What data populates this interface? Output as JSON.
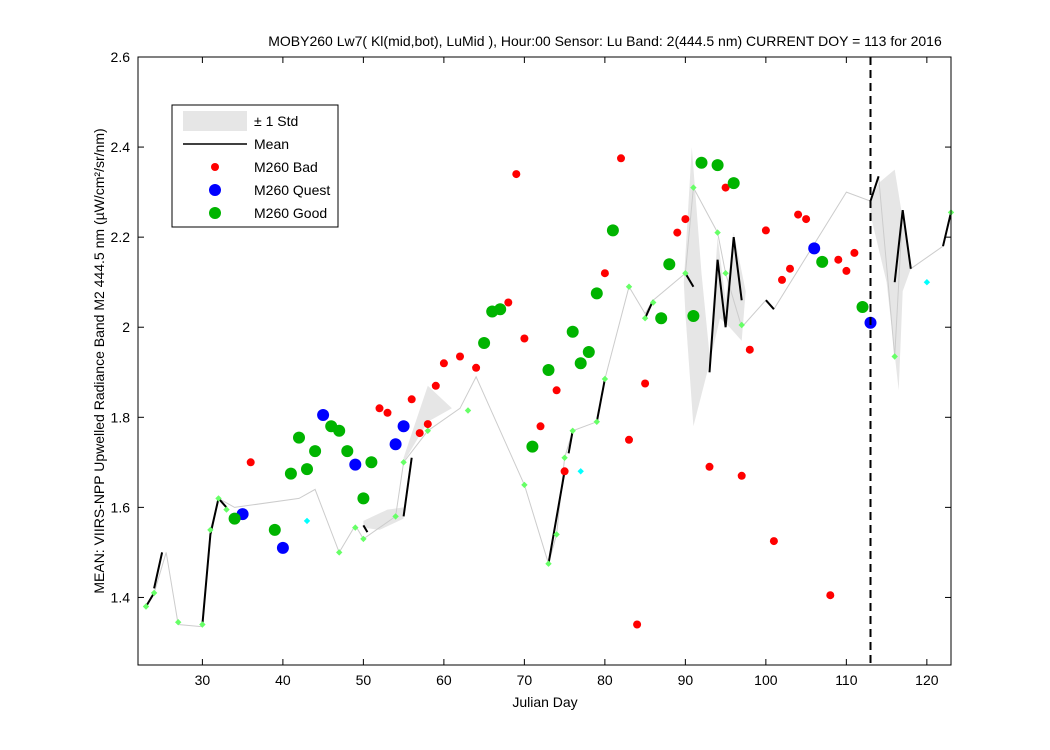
{
  "chart_data": {
    "type": "scatter",
    "title": "MOBY260   Lw7( Kl(mid,bot), LuMid ),   Hour:00 Sensor: Lu Band: 2(444.5 nm)   CURRENT DOY = 113 for 2016",
    "xlabel": "Julian Day",
    "ylabel": "MEAN: VIIRS-NPP Upwelled Radiance Band M2 444.5 nm (µW/cm²/sr/nm)",
    "xlim": [
      22,
      123
    ],
    "ylim": [
      1.25,
      2.6
    ],
    "x_ticks": [
      30,
      40,
      50,
      60,
      70,
      80,
      90,
      100,
      110,
      120
    ],
    "y_ticks": [
      1.4,
      1.6,
      1.8,
      2.0,
      2.2,
      2.4,
      2.6
    ],
    "y_tick_labels": [
      "1.4",
      "1.6",
      "1.8",
      "2",
      "2.2",
      "2.4",
      "2.6"
    ],
    "grid": false,
    "legend_position": "top-left",
    "current_day_line": 113,
    "legend": [
      {
        "label": "± 1 Std",
        "kind": "band"
      },
      {
        "label": "Mean",
        "kind": "line"
      },
      {
        "label": "M260 Bad",
        "kind": "dot",
        "color": "#ff0000"
      },
      {
        "label": "M260 Quest",
        "kind": "dot",
        "color": "#0000ff"
      },
      {
        "label": "M260 Good",
        "kind": "dot",
        "color": "#00b400"
      }
    ],
    "colors": {
      "bad": "#ff0000",
      "quest": "#0000ff",
      "good": "#00b400",
      "std_band": "#e6e6e6",
      "mean_line": "#000000",
      "light_green": "#66ff66",
      "cyan": "#00ffff",
      "thin_line": "#cccccc"
    },
    "std_bands": [
      [
        [
          50,
          1.57
        ],
        [
          53,
          1.595
        ],
        [
          55,
          1.6
        ],
        [
          55,
          1.575
        ],
        [
          52,
          1.55
        ],
        [
          50,
          1.555
        ]
      ],
      [
        [
          55,
          1.71
        ],
        [
          58,
          1.87
        ],
        [
          61,
          1.82
        ],
        [
          58,
          1.79
        ],
        [
          55,
          1.7
        ]
      ],
      [
        [
          89.8,
          2.1
        ],
        [
          90.8,
          2.4
        ],
        [
          92,
          2.12
        ],
        [
          93,
          1.94
        ],
        [
          94,
          2.2
        ],
        [
          95,
          2.06
        ],
        [
          96,
          2.21
        ],
        [
          97.5,
          2.08
        ],
        [
          97,
          1.97
        ],
        [
          95.5,
          2.0
        ],
        [
          94.3,
          2.02
        ],
        [
          93,
          1.92
        ],
        [
          91,
          1.78
        ],
        [
          90,
          2.03
        ]
      ],
      [
        [
          113,
          2.28
        ],
        [
          114,
          2.32
        ],
        [
          116,
          2.35
        ],
        [
          118,
          2.13
        ],
        [
          117,
          2.08
        ],
        [
          116.5,
          1.86
        ],
        [
          115,
          2.1
        ],
        [
          113,
          2.25
        ]
      ]
    ],
    "mean_segments": [
      [
        [
          23,
          1.38
        ],
        [
          24,
          1.41
        ]
      ],
      [
        [
          24,
          1.42
        ],
        [
          25,
          1.5
        ]
      ],
      [
        [
          30,
          1.34
        ],
        [
          31,
          1.54
        ],
        [
          32,
          1.62
        ],
        [
          33,
          1.6
        ]
      ],
      [
        [
          50,
          1.56
        ],
        [
          50.5,
          1.545
        ]
      ],
      [
        [
          55,
          1.58
        ],
        [
          56,
          1.71
        ]
      ],
      [
        [
          73,
          1.475
        ],
        [
          75,
          1.68
        ]
      ],
      [
        [
          75.5,
          1.72
        ],
        [
          76,
          1.77
        ]
      ],
      [
        [
          79,
          1.79
        ],
        [
          80,
          1.885
        ]
      ],
      [
        [
          85,
          2.02
        ],
        [
          86,
          2.06
        ]
      ],
      [
        [
          90,
          2.12
        ],
        [
          91,
          2.09
        ]
      ],
      [
        [
          93,
          1.9
        ],
        [
          94,
          2.15
        ],
        [
          95,
          2.0
        ],
        [
          96,
          2.2
        ],
        [
          97,
          2.06
        ]
      ],
      [
        [
          100,
          2.06
        ],
        [
          101,
          2.04
        ]
      ],
      [
        [
          113,
          2.28
        ],
        [
          114,
          2.335
        ]
      ],
      [
        [
          116,
          2.1
        ],
        [
          117,
          2.26
        ],
        [
          118,
          2.13
        ]
      ],
      [
        [
          122,
          2.18
        ],
        [
          123,
          2.255
        ]
      ]
    ],
    "thin_line": [
      [
        23,
        1.38
      ],
      [
        24,
        1.41
      ],
      [
        25.5,
        1.5
      ],
      [
        27,
        1.34
      ],
      [
        30,
        1.335
      ],
      [
        31,
        1.55
      ],
      [
        32,
        1.62
      ],
      [
        34,
        1.6
      ],
      [
        42,
        1.62
      ],
      [
        44,
        1.64
      ],
      [
        47,
        1.5
      ],
      [
        49,
        1.56
      ],
      [
        50,
        1.53
      ],
      [
        54,
        1.58
      ],
      [
        55,
        1.7
      ],
      [
        58,
        1.77
      ],
      [
        62,
        1.82
      ],
      [
        64,
        1.89
      ],
      [
        70,
        1.65
      ],
      [
        73,
        1.475
      ],
      [
        74,
        1.54
      ],
      [
        75,
        1.71
      ],
      [
        76,
        1.77
      ],
      [
        79,
        1.79
      ],
      [
        80,
        1.885
      ],
      [
        83,
        2.09
      ],
      [
        85,
        2.03
      ],
      [
        86,
        2.06
      ],
      [
        90,
        2.12
      ],
      [
        91,
        2.31
      ],
      [
        94,
        2.21
      ],
      [
        95,
        2.12
      ],
      [
        97,
        2.0
      ],
      [
        100,
        2.06
      ],
      [
        101,
        2.04
      ],
      [
        110,
        2.3
      ],
      [
        113,
        2.28
      ],
      [
        114,
        2.335
      ],
      [
        116,
        1.935
      ],
      [
        117,
        2.26
      ],
      [
        118,
        2.13
      ],
      [
        122,
        2.18
      ],
      [
        123,
        2.255
      ]
    ],
    "light_green_points": [
      [
        23,
        1.38
      ],
      [
        24,
        1.41
      ],
      [
        27,
        1.345
      ],
      [
        30,
        1.34
      ],
      [
        31,
        1.55
      ],
      [
        32,
        1.62
      ],
      [
        33,
        1.595
      ],
      [
        47,
        1.5
      ],
      [
        49,
        1.555
      ],
      [
        50,
        1.53
      ],
      [
        54,
        1.58
      ],
      [
        55,
        1.7
      ],
      [
        58,
        1.77
      ],
      [
        63,
        1.815
      ],
      [
        70,
        1.65
      ],
      [
        73,
        1.475
      ],
      [
        74,
        1.54
      ],
      [
        75,
        1.71
      ],
      [
        76,
        1.77
      ],
      [
        79,
        1.79
      ],
      [
        80,
        1.885
      ],
      [
        83,
        2.09
      ],
      [
        85,
        2.02
      ],
      [
        86,
        2.055
      ],
      [
        90,
        2.12
      ],
      [
        91,
        2.31
      ],
      [
        94,
        2.21
      ],
      [
        95,
        2.12
      ],
      [
        97,
        2.005
      ],
      [
        116,
        1.935
      ],
      [
        123,
        2.255
      ]
    ],
    "cyan_points": [
      [
        43,
        1.57
      ],
      [
        77,
        1.68
      ],
      [
        120,
        2.1
      ]
    ],
    "series": [
      {
        "name": "M260 Bad",
        "marker": "small",
        "points": [
          [
            36,
            1.7
          ],
          [
            52,
            1.82
          ],
          [
            53,
            1.81
          ],
          [
            56,
            1.84
          ],
          [
            57,
            1.765
          ],
          [
            58,
            1.785
          ],
          [
            59,
            1.87
          ],
          [
            60,
            1.92
          ],
          [
            62,
            1.935
          ],
          [
            64,
            1.91
          ],
          [
            68,
            2.055
          ],
          [
            69,
            2.34
          ],
          [
            70,
            1.975
          ],
          [
            72,
            1.78
          ],
          [
            74,
            1.86
          ],
          [
            75,
            1.68
          ],
          [
            80,
            2.12
          ],
          [
            82,
            2.375
          ],
          [
            83,
            1.75
          ],
          [
            84,
            1.34
          ],
          [
            85,
            1.875
          ],
          [
            89,
            2.21
          ],
          [
            90,
            2.24
          ],
          [
            93,
            1.69
          ],
          [
            95,
            2.31
          ],
          [
            97,
            1.67
          ],
          [
            98,
            1.95
          ],
          [
            100,
            2.215
          ],
          [
            101,
            1.525
          ],
          [
            102,
            2.105
          ],
          [
            103,
            2.13
          ],
          [
            104,
            2.25
          ],
          [
            105,
            2.24
          ],
          [
            108,
            1.405
          ],
          [
            109,
            2.15
          ],
          [
            110,
            2.125
          ],
          [
            111,
            2.165
          ]
        ]
      },
      {
        "name": "M260 Quest",
        "marker": "large",
        "points": [
          [
            35,
            1.585
          ],
          [
            40,
            1.51
          ],
          [
            45,
            1.805
          ],
          [
            49,
            1.695
          ],
          [
            54,
            1.74
          ],
          [
            55,
            1.78
          ],
          [
            106,
            2.175
          ],
          [
            113,
            2.01
          ]
        ]
      },
      {
        "name": "M260 Good",
        "marker": "large",
        "points": [
          [
            34,
            1.575
          ],
          [
            39,
            1.55
          ],
          [
            41,
            1.675
          ],
          [
            42,
            1.755
          ],
          [
            43,
            1.685
          ],
          [
            44,
            1.725
          ],
          [
            46,
            1.78
          ],
          [
            47,
            1.77
          ],
          [
            48,
            1.725
          ],
          [
            50,
            1.62
          ],
          [
            51,
            1.7
          ],
          [
            65,
            1.965
          ],
          [
            66,
            2.035
          ],
          [
            67,
            2.04
          ],
          [
            71,
            1.735
          ],
          [
            73,
            1.905
          ],
          [
            76,
            1.99
          ],
          [
            77,
            1.92
          ],
          [
            78,
            1.945
          ],
          [
            79,
            2.075
          ],
          [
            81,
            2.215
          ],
          [
            87,
            2.02
          ],
          [
            88,
            2.14
          ],
          [
            91,
            2.025
          ],
          [
            92,
            2.365
          ],
          [
            94,
            2.36
          ],
          [
            96,
            2.32
          ],
          [
            107,
            2.145
          ],
          [
            112,
            2.045
          ]
        ]
      }
    ]
  }
}
